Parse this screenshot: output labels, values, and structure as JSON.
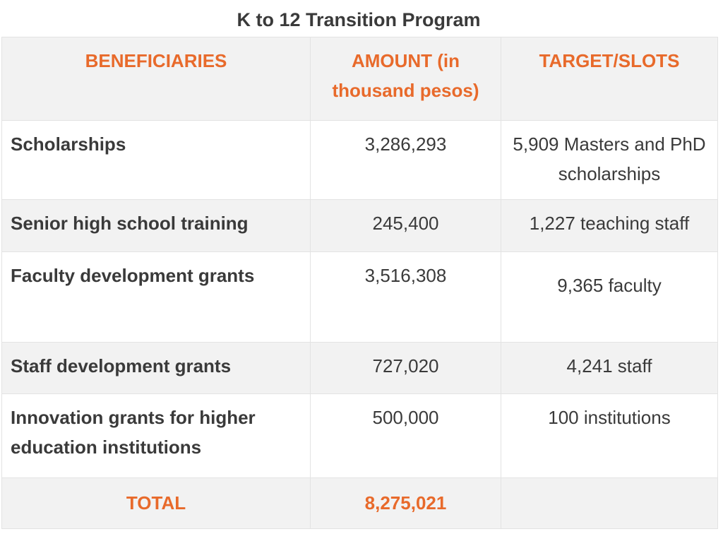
{
  "title": "K to 12 Transition Program",
  "headers": {
    "beneficiaries": "BENEFICIARIES",
    "amount": "AMOUNT (in thousand pesos)",
    "target": "TARGET/SLOTS"
  },
  "rows": [
    {
      "label": "Scholarships",
      "amount": "3,286,293",
      "target": "5,909 Masters and PhD scholarships"
    },
    {
      "label": "Senior high school training",
      "amount": "245,400",
      "target": "1,227 teaching staff"
    },
    {
      "label": "Faculty development grants",
      "amount": "3,516,308",
      "target": "9,365 faculty"
    },
    {
      "label": "Staff development grants",
      "amount": "727,020",
      "target": "4,241 staff"
    },
    {
      "label": "Innovation grants for higher education institutions",
      "amount": "500,000",
      "target": "100 institutions"
    }
  ],
  "total": {
    "label": "TOTAL",
    "amount": "8,275,021",
    "target": ""
  },
  "colors": {
    "accent": "#e86a2b",
    "text": "#3a3a3a",
    "shade": "#f2f2f2",
    "border": "#e3e3e3"
  }
}
